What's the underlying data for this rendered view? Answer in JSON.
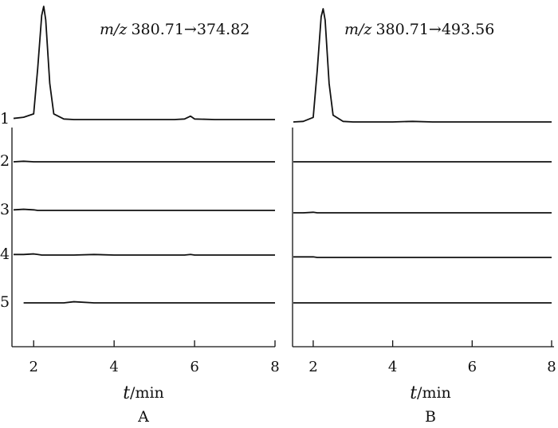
{
  "chart_data": [
    {
      "type": "line",
      "panel_label": "A",
      "annotation_prefix": "m/z",
      "annotation": "380.71→374.82",
      "xlabel_var": "t",
      "xlabel_unit": "/min",
      "xlim": [
        1.5,
        8
      ],
      "xticks": [
        2,
        4,
        6,
        8
      ],
      "ylim": [
        0,
        100
      ],
      "x": [
        1.5,
        1.75,
        2.0,
        2.1,
        2.2,
        2.25,
        2.3,
        2.4,
        2.5,
        2.75,
        3,
        3.5,
        4,
        4.5,
        5,
        5.5,
        5.75,
        5.9,
        6,
        6.5,
        7,
        7.5,
        8
      ],
      "series": [
        {
          "name": "1",
          "color": "#111111",
          "values": [
            1,
            2,
            5,
            45,
            92,
            100,
            88,
            32,
            5,
            0.5,
            0,
            0,
            0,
            0,
            0,
            0,
            0.5,
            3,
            0.5,
            0,
            0,
            0,
            0
          ]
        },
        {
          "name": "2",
          "color": "#111111",
          "values": [
            0,
            0.5,
            0,
            0,
            0,
            0,
            0,
            0,
            0,
            0,
            0,
            0,
            0,
            0,
            0,
            0,
            0,
            0,
            0,
            0,
            0,
            0,
            0
          ]
        },
        {
          "name": "3",
          "color": "#111111",
          "values": [
            0.5,
            1,
            0.5,
            0,
            0,
            0,
            0,
            0,
            0,
            0,
            0,
            0,
            0,
            0,
            0,
            0,
            0,
            0,
            0,
            0,
            0,
            0,
            0
          ]
        },
        {
          "name": "4",
          "color": "#111111",
          "values": [
            0.5,
            0.5,
            1,
            0.5,
            0,
            0,
            0,
            0,
            0,
            0,
            0,
            0.5,
            0,
            0,
            0,
            0,
            0,
            0.5,
            0,
            0,
            0,
            0,
            0
          ]
        },
        {
          "name": "5",
          "color": "#111111",
          "values": [
            null,
            0,
            0,
            0,
            0,
            0,
            0,
            0,
            0,
            0,
            1,
            0,
            0,
            0,
            0,
            0,
            0,
            0,
            0,
            0,
            0,
            0,
            0
          ]
        }
      ]
    },
    {
      "type": "line",
      "panel_label": "B",
      "annotation_prefix": "m/z",
      "annotation": "380.71→493.56",
      "xlabel_var": "t",
      "xlabel_unit": "/min",
      "xlim": [
        1.5,
        8
      ],
      "xticks": [
        2,
        4,
        6,
        8
      ],
      "ylim": [
        0,
        100
      ],
      "x": [
        1.5,
        1.75,
        2.0,
        2.1,
        2.2,
        2.25,
        2.3,
        2.4,
        2.5,
        2.75,
        3,
        3.5,
        4,
        4.5,
        5,
        5.5,
        5.75,
        5.9,
        6,
        6.5,
        7,
        7.5,
        8
      ],
      "series": [
        {
          "color": "#111111",
          "values": [
            0,
            0.5,
            4,
            45,
            93,
            100,
            90,
            34,
            6,
            0.5,
            0,
            0,
            0,
            0.5,
            0,
            0,
            0,
            0,
            0,
            0,
            0,
            0,
            0
          ]
        },
        {
          "color": "#111111",
          "values": [
            0,
            0,
            0,
            0,
            0,
            0,
            0,
            0,
            0,
            0,
            0,
            0,
            0,
            0,
            0,
            0,
            0,
            0,
            0,
            0,
            0,
            0,
            0
          ]
        },
        {
          "color": "#111111",
          "values": [
            0,
            0,
            0.5,
            0,
            0,
            0,
            0,
            0,
            0,
            0,
            0,
            0,
            0,
            0,
            0,
            0,
            0,
            0,
            0,
            0,
            0,
            0,
            0
          ]
        },
        {
          "color": "#111111",
          "values": [
            0.5,
            0.5,
            0.5,
            0,
            0,
            0,
            0,
            0,
            0,
            0,
            0,
            0,
            0,
            0,
            0,
            0,
            0,
            0,
            0,
            0,
            0,
            0,
            0
          ]
        },
        {
          "color": "#111111",
          "values": [
            0,
            0,
            0,
            0,
            0,
            0,
            0,
            0,
            0,
            0,
            0,
            0,
            0,
            0,
            0,
            0,
            0,
            0,
            0,
            0,
            0,
            0,
            0
          ]
        }
      ]
    }
  ]
}
